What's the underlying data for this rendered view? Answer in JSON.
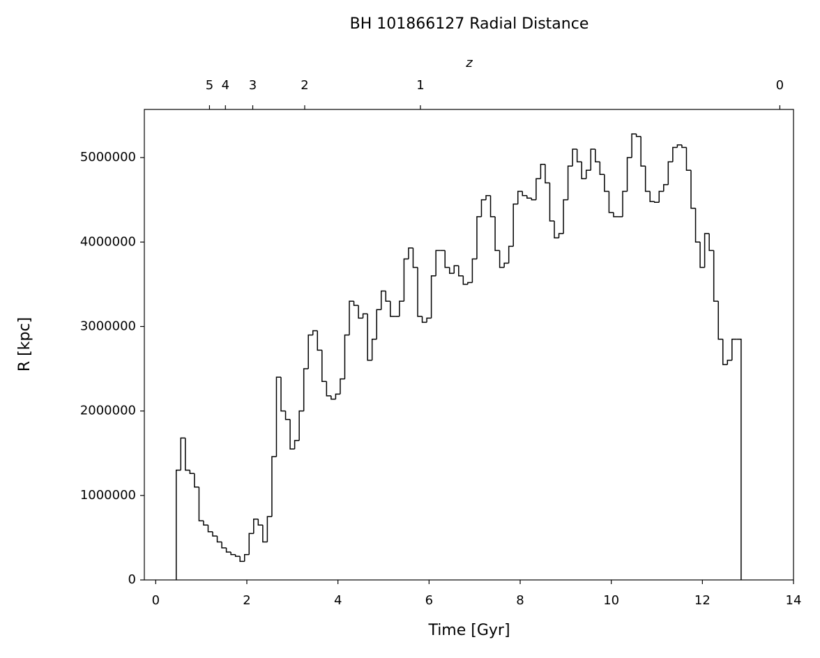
{
  "chart_data": {
    "type": "histogram",
    "title": "BH 101866127 Radial Distance",
    "xlabel": "Time [Gyr]",
    "ylabel": "R [kpc]",
    "color": "#000000",
    "bins": [
      0.45,
      0.55,
      0.65,
      0.75,
      0.85,
      0.95,
      1.05,
      1.15,
      1.25,
      1.35,
      1.45,
      1.55,
      1.65,
      1.75,
      1.85,
      1.95,
      2.05,
      2.15,
      2.25,
      2.35,
      2.45,
      2.55,
      2.65,
      2.75,
      2.85,
      2.95,
      3.05,
      3.15,
      3.25,
      3.35,
      3.45,
      3.55,
      3.65,
      3.75,
      3.85,
      3.95,
      4.05,
      4.15,
      4.25,
      4.35,
      4.45,
      4.55,
      4.65,
      4.75,
      4.85,
      4.95,
      5.05,
      5.15,
      5.25,
      5.35,
      5.45,
      5.55,
      5.65,
      5.75,
      5.85,
      5.95,
      6.05,
      6.15,
      6.25,
      6.35,
      6.45,
      6.55,
      6.65,
      6.75,
      6.85,
      6.95,
      7.05,
      7.15,
      7.25,
      7.35,
      7.45,
      7.55,
      7.65,
      7.75,
      7.85,
      7.95,
      8.05,
      8.15,
      8.25,
      8.35,
      8.45,
      8.55,
      8.65,
      8.75,
      8.85,
      8.95,
      9.05,
      9.15,
      9.25,
      9.35,
      9.45,
      9.55,
      9.65,
      9.75,
      9.85,
      9.95,
      10.05,
      10.15,
      10.25,
      10.35,
      10.45,
      10.55,
      10.65,
      10.75,
      10.85,
      10.95,
      11.05,
      11.15,
      11.25,
      11.35,
      11.45,
      11.55,
      11.65,
      11.75,
      11.85,
      11.95,
      12.05,
      12.15,
      12.25,
      12.35,
      12.45,
      12.55,
      12.65,
      12.75,
      12.85
    ],
    "values": [
      1300000,
      1680000,
      1300000,
      1260000,
      1100000,
      700000,
      650000,
      570000,
      520000,
      450000,
      380000,
      330000,
      300000,
      280000,
      220000,
      300000,
      550000,
      720000,
      650000,
      450000,
      750000,
      1460000,
      2400000,
      2000000,
      1900000,
      1550000,
      1650000,
      2000000,
      2500000,
      2900000,
      2950000,
      2720000,
      2350000,
      2180000,
      2140000,
      2200000,
      2380000,
      2900000,
      3300000,
      3250000,
      3100000,
      3150000,
      2600000,
      2850000,
      3200000,
      3420000,
      3300000,
      3120000,
      3120000,
      3300000,
      3800000,
      3930000,
      3700000,
      3120000,
      3050000,
      3100000,
      3600000,
      3900000,
      3900000,
      3700000,
      3630000,
      3720000,
      3600000,
      3500000,
      3520000,
      3800000,
      4300000,
      4500000,
      4550000,
      4300000,
      3900000,
      3700000,
      3750000,
      3950000,
      4450000,
      4600000,
      4550000,
      4520000,
      4500000,
      4750000,
      4920000,
      4700000,
      4250000,
      4050000,
      4100000,
      4500000,
      4900000,
      5100000,
      4950000,
      4750000,
      4850000,
      5100000,
      4950000,
      4800000,
      4600000,
      4350000,
      4300000,
      4300000,
      4600000,
      5000000,
      5280000,
      5250000,
      4900000,
      4600000,
      4480000,
      4470000,
      4600000,
      4680000,
      4950000,
      5120000,
      5150000,
      5120000,
      4850000,
      4400000,
      4000000,
      3700000,
      4100000,
      3900000,
      3300000,
      2850000,
      2550000,
      2600000,
      2850000,
      2850000
    ],
    "xlim": [
      -0.25,
      14
    ],
    "ylim": [
      0,
      5570000
    ],
    "xticks": [
      0,
      2,
      4,
      6,
      8,
      10,
      12,
      14
    ],
    "yticks": [
      0,
      1000000,
      2000000,
      3000000,
      4000000,
      5000000
    ],
    "top_axis": {
      "label": "z",
      "ticks": [
        {
          "value": 1.18,
          "label": "5"
        },
        {
          "value": 1.53,
          "label": "4"
        },
        {
          "value": 2.13,
          "label": "3"
        },
        {
          "value": 3.27,
          "label": "2"
        },
        {
          "value": 5.81,
          "label": "1"
        },
        {
          "value": 13.7,
          "label": "0"
        }
      ]
    }
  }
}
